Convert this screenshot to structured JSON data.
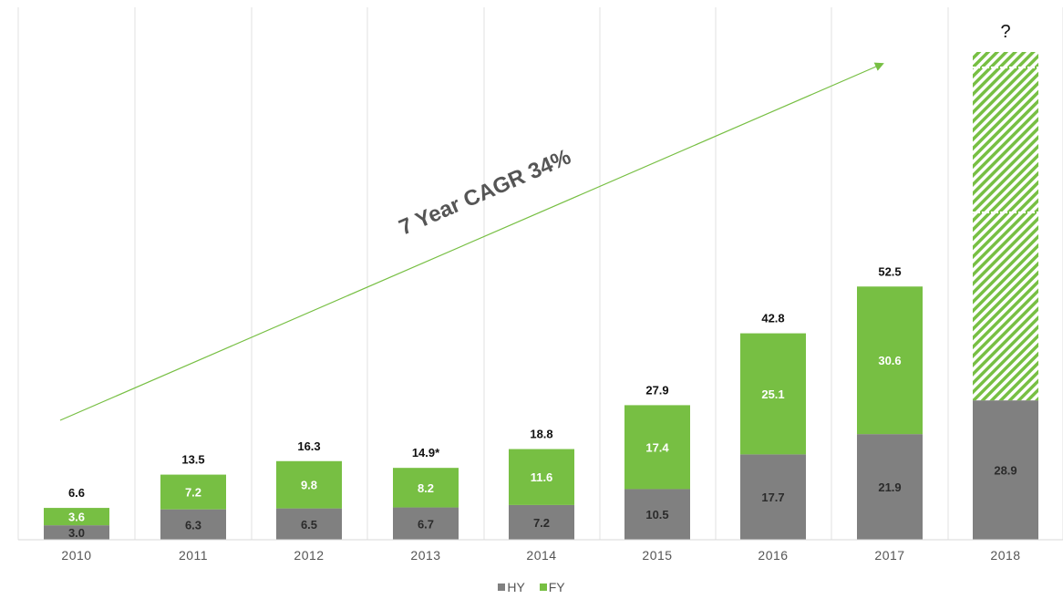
{
  "chart_data": {
    "type": "bar",
    "stacked": true,
    "categories": [
      "2010",
      "2011",
      "2012",
      "2013",
      "2014",
      "2015",
      "2016",
      "2017",
      "2018"
    ],
    "series": [
      {
        "name": "HY",
        "color": "#808080",
        "values": [
          3.0,
          6.3,
          6.5,
          6.7,
          7.2,
          10.5,
          17.7,
          21.9,
          28.9
        ]
      },
      {
        "name": "FY",
        "color": "#77bf43",
        "values": [
          3.6,
          7.2,
          9.8,
          8.2,
          11.6,
          17.4,
          25.1,
          30.6,
          null
        ]
      }
    ],
    "value_labels": {
      "HY": [
        "3.0",
        "6.3",
        "6.5",
        "6.7",
        "7.2",
        "10.5",
        "17.7",
        "21.9",
        "28.9"
      ],
      "FY": [
        "3.6",
        "7.2",
        "9.8",
        "8.2",
        "11.6",
        "17.4",
        "25.1",
        "30.6",
        ""
      ]
    },
    "totals": [
      6.6,
      13.5,
      16.3,
      14.9,
      18.8,
      27.9,
      42.8,
      52.5,
      null
    ],
    "total_labels": [
      "6.6",
      "13.5",
      "16.3",
      "14.9*",
      "18.8",
      "27.9",
      "42.8",
      "52.5",
      "?"
    ],
    "forecast": {
      "category": "2018",
      "pattern": "green-hatched",
      "color": "#77bf43"
    },
    "annotation": {
      "text": "7 Year CAGR 34%",
      "arrow_color": "#77bf43"
    },
    "ylim": [
      0,
      60
    ],
    "grid": "vertical category separators",
    "legend_position": "bottom-center",
    "xlabel": "",
    "ylabel": "",
    "title": ""
  }
}
